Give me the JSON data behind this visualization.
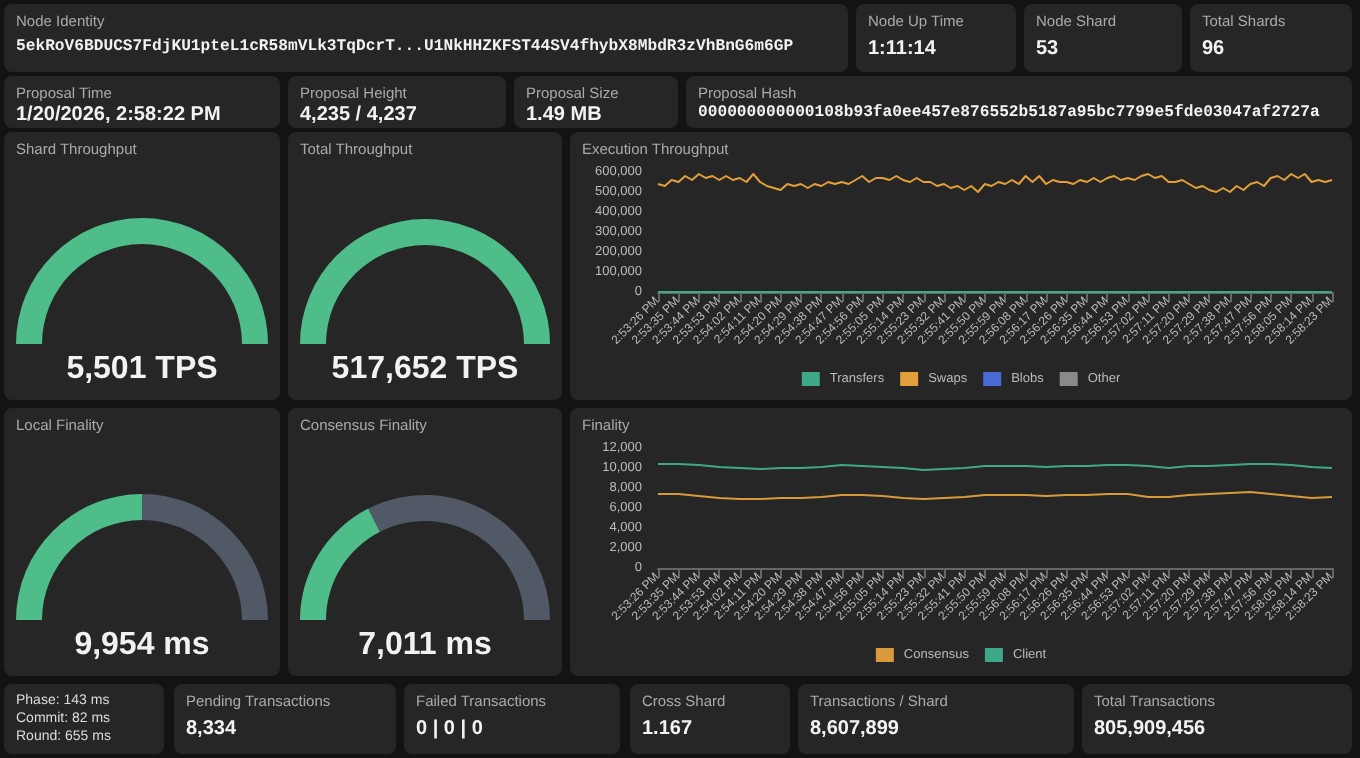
{
  "chart_data": [
    {
      "type": "other",
      "title": "Node Identity",
      "annotations": [
        "5ekRoV6BDUCS7FdjKU1pteL1cR58mVLk3TqDcrT...U1NkHHZKFST44SV4fhybX8MbdR3zVhBnG6m6GP"
      ]
    },
    {
      "type": "other",
      "title": "Node Up Time",
      "annotations": [
        "1:11:14"
      ]
    },
    {
      "type": "other",
      "title": "Node Shard",
      "annotations": [
        "53"
      ]
    },
    {
      "type": "other",
      "title": "Total Shards",
      "annotations": [
        "96"
      ]
    },
    {
      "type": "other",
      "title": "Proposal Time",
      "annotations": [
        "1/20/2026, 2:58:22 PM"
      ]
    },
    {
      "type": "other",
      "title": "Proposal Height",
      "annotations": [
        "4,235 / 4,237"
      ]
    },
    {
      "type": "other",
      "title": "Proposal Size",
      "annotations": [
        "1.49 MB"
      ]
    },
    {
      "type": "other",
      "title": "Proposal Hash",
      "annotations": [
        "000000000000108b93fa0ee457e876552b5187a95bc7799e5fde03047af2727a"
      ]
    },
    {
      "type": "pie",
      "title": "Shard Throughput",
      "categories": [
        null,
        null
      ],
      "values": [
        100,
        0
      ],
      "colors": [
        "#4fbd8a",
        "#515866"
      ],
      "annotations": [
        "5,501 TPS"
      ]
    },
    {
      "type": "pie",
      "title": "Total Throughput",
      "categories": [
        null,
        null
      ],
      "values": [
        100,
        0
      ],
      "colors": [
        "#4fbd8a",
        "#515866"
      ],
      "annotations": [
        "517,652 TPS"
      ]
    },
    {
      "type": "line",
      "title": "Execution Throughput",
      "legend": "bottom",
      "ylim": [
        0,
        600000
      ],
      "yticks": [
        {
          "value": 0,
          "label": "0"
        },
        {
          "value": 100000,
          "label": "100,000"
        },
        {
          "value": 200000,
          "label": "200,000"
        },
        {
          "value": 300000,
          "label": "300,000"
        },
        {
          "value": 400000,
          "label": "400,000"
        },
        {
          "value": 500000,
          "label": "500,000"
        },
        {
          "value": 600000,
          "label": "600,000"
        }
      ],
      "categories": [
        "2:53:26 PM",
        null,
        null,
        "2:53:35 PM",
        null,
        null,
        "2:53:44 PM",
        null,
        null,
        "2:53:53 PM",
        null,
        null,
        "2:54:02 PM",
        null,
        null,
        "2:54:11 PM",
        null,
        null,
        "2:54:20 PM",
        null,
        null,
        "2:54:29 PM",
        null,
        null,
        "2:54:38 PM",
        null,
        null,
        "2:54:47 PM",
        null,
        null,
        "2:54:56 PM",
        null,
        null,
        "2:55:05 PM",
        null,
        null,
        "2:55:14 PM",
        null,
        null,
        "2:55:23 PM",
        null,
        null,
        "2:55:32 PM",
        null,
        null,
        "2:55:41 PM",
        null,
        null,
        "2:55:50 PM",
        null,
        null,
        "2:55:59 PM",
        null,
        null,
        "2:56:08 PM",
        null,
        null,
        "2:56:17 PM",
        null,
        null,
        "2:56:26 PM",
        null,
        null,
        "2:56:35 PM",
        null,
        null,
        "2:56:44 PM",
        null,
        null,
        "2:56:53 PM",
        null,
        null,
        "2:57:02 PM",
        null,
        null,
        "2:57:11 PM",
        null,
        null,
        "2:57:20 PM",
        null,
        null,
        "2:57:29 PM",
        null,
        null,
        "2:57:38 PM",
        null,
        null,
        "2:57:47 PM",
        null,
        null,
        "2:57:56 PM",
        null,
        null,
        "2:58:05 PM",
        null,
        null,
        "2:58:14 PM",
        null,
        null,
        "2:58:23 PM"
      ],
      "series": [
        {
          "name": "Transfers",
          "color": "#3fa88a",
          "values": [
            0,
            0,
            0,
            0,
            0,
            0,
            0,
            0,
            0,
            0,
            0,
            0,
            0,
            0,
            0,
            0,
            0,
            0,
            0,
            0,
            0,
            0,
            0,
            0,
            0,
            0,
            0,
            0,
            0,
            0,
            0,
            0,
            0,
            0,
            0,
            0,
            0,
            0,
            0,
            0,
            0,
            0,
            0,
            0,
            0,
            0,
            0,
            0,
            0,
            0,
            0,
            0,
            0,
            0,
            0,
            0,
            0,
            0,
            0,
            0,
            0,
            0,
            0,
            0,
            0,
            0,
            0,
            0,
            0,
            0,
            0,
            0,
            0,
            0,
            0,
            0,
            0,
            0,
            0,
            0,
            0,
            0,
            0,
            0,
            0,
            0,
            0,
            0,
            0,
            0,
            0,
            0,
            0,
            0,
            0,
            0,
            0,
            0,
            0,
            0
          ]
        },
        {
          "name": "Swaps",
          "color": "#e3a03a",
          "values": [
            540000,
            530000,
            560000,
            550000,
            580000,
            560000,
            590000,
            570000,
            580000,
            560000,
            580000,
            560000,
            570000,
            550000,
            590000,
            550000,
            530000,
            520000,
            510000,
            540000,
            530000,
            540000,
            520000,
            540000,
            530000,
            550000,
            540000,
            550000,
            540000,
            560000,
            580000,
            550000,
            570000,
            570000,
            560000,
            580000,
            560000,
            550000,
            570000,
            550000,
            550000,
            530000,
            540000,
            520000,
            530000,
            510000,
            530000,
            500000,
            540000,
            530000,
            550000,
            540000,
            560000,
            540000,
            580000,
            550000,
            580000,
            540000,
            560000,
            550000,
            550000,
            540000,
            560000,
            550000,
            570000,
            550000,
            570000,
            580000,
            560000,
            570000,
            560000,
            580000,
            590000,
            570000,
            580000,
            550000,
            550000,
            560000,
            540000,
            520000,
            530000,
            510000,
            500000,
            520000,
            500000,
            530000,
            510000,
            540000,
            550000,
            530000,
            570000,
            580000,
            560000,
            590000,
            570000,
            590000,
            550000,
            560000,
            550000,
            560000
          ]
        },
        {
          "name": "Blobs",
          "color": "#4a6bd6",
          "values": [
            null,
            null,
            null,
            null,
            null,
            null,
            null,
            null,
            null,
            null,
            null,
            null,
            null,
            null,
            null,
            null,
            null,
            null,
            null,
            null,
            null,
            null,
            null,
            null,
            null,
            null,
            null,
            null,
            null,
            null,
            null,
            null,
            null,
            null,
            null,
            null,
            null,
            null,
            null,
            null,
            null,
            null,
            null,
            null,
            null,
            null,
            null,
            null,
            null,
            null,
            null,
            null,
            null,
            null,
            null,
            null,
            null,
            null,
            null,
            null,
            null,
            null,
            null,
            null,
            null,
            null,
            null,
            null,
            null,
            null,
            null,
            null,
            null,
            null,
            null,
            null,
            null,
            null,
            null,
            null,
            null,
            null,
            null,
            null,
            null,
            null,
            null,
            null,
            null,
            null,
            null,
            null,
            null,
            null,
            null,
            null,
            null,
            null,
            null,
            null
          ]
        },
        {
          "name": "Other",
          "color": "#8a8a8a",
          "values": [
            null,
            null,
            null,
            null,
            null,
            null,
            null,
            null,
            null,
            null,
            null,
            null,
            null,
            null,
            null,
            null,
            null,
            null,
            null,
            null,
            null,
            null,
            null,
            null,
            null,
            null,
            null,
            null,
            null,
            null,
            null,
            null,
            null,
            null,
            null,
            null,
            null,
            null,
            null,
            null,
            null,
            null,
            null,
            null,
            null,
            null,
            null,
            null,
            null,
            null,
            null,
            null,
            null,
            null,
            null,
            null,
            null,
            null,
            null,
            null,
            null,
            null,
            null,
            null,
            null,
            null,
            null,
            null,
            null,
            null,
            null,
            null,
            null,
            null,
            null,
            null,
            null,
            null,
            null,
            null,
            null,
            null,
            null,
            null,
            null,
            null,
            null,
            null,
            null,
            null,
            null,
            null,
            null,
            null,
            null,
            null,
            null,
            null,
            null,
            null
          ]
        }
      ]
    },
    {
      "type": "donut",
      "title": "Local Finality",
      "categories": [
        null,
        null
      ],
      "values": [
        50,
        50
      ],
      "colors": [
        "#4fbd8a",
        "#515866"
      ],
      "annotations": [
        "9,954 ms"
      ]
    },
    {
      "type": "donut",
      "title": "Consensus Finality",
      "categories": [
        null,
        null
      ],
      "values": [
        35,
        65
      ],
      "colors": [
        "#4fbd8a",
        "#515866"
      ],
      "annotations": [
        "7,011 ms"
      ]
    },
    {
      "type": "line",
      "title": "Finality",
      "legend": "bottom",
      "ylim": [
        0,
        12000
      ],
      "yticks": [
        {
          "value": 0,
          "label": "0"
        },
        {
          "value": 2000,
          "label": "2,000"
        },
        {
          "value": 4000,
          "label": "4,000"
        },
        {
          "value": 6000,
          "label": "6,000"
        },
        {
          "value": 8000,
          "label": "8,000"
        },
        {
          "value": 10000,
          "label": "10,000"
        },
        {
          "value": 12000,
          "label": "12,000"
        }
      ],
      "categories": [
        "2:53:26 PM",
        "2:53:35 PM",
        "2:53:44 PM",
        "2:53:53 PM",
        "2:54:02 PM",
        "2:54:11 PM",
        "2:54:20 PM",
        "2:54:29 PM",
        "2:54:38 PM",
        "2:54:47 PM",
        "2:54:56 PM",
        "2:55:05 PM",
        "2:55:14 PM",
        "2:55:23 PM",
        "2:55:32 PM",
        "2:55:41 PM",
        "2:55:50 PM",
        "2:55:59 PM",
        "2:56:08 PM",
        "2:56:17 PM",
        "2:56:26 PM",
        "2:56:35 PM",
        "2:56:44 PM",
        "2:56:53 PM",
        "2:57:02 PM",
        "2:57:11 PM",
        "2:57:20 PM",
        "2:57:29 PM",
        "2:57:38 PM",
        "2:57:47 PM",
        "2:57:56 PM",
        "2:58:05 PM",
        "2:58:14 PM",
        "2:58:23 PM"
      ],
      "series": [
        {
          "name": "Consensus",
          "color": "#d99a3b",
          "values": [
            7400,
            7400,
            7200,
            7000,
            6900,
            6900,
            7000,
            7000,
            7100,
            7300,
            7300,
            7200,
            7000,
            6900,
            7000,
            7100,
            7300,
            7300,
            7300,
            7200,
            7300,
            7300,
            7400,
            7400,
            7100,
            7100,
            7300,
            7400,
            7500,
            7600,
            7400,
            7200,
            7000,
            7100
          ]
        },
        {
          "name": "Client",
          "color": "#3fa88a",
          "values": [
            10400,
            10400,
            10300,
            10100,
            10000,
            9900,
            10000,
            10000,
            10100,
            10300,
            10200,
            10100,
            10000,
            9800,
            9900,
            10000,
            10200,
            10200,
            10200,
            10100,
            10200,
            10200,
            10300,
            10300,
            10200,
            10000,
            10200,
            10200,
            10300,
            10400,
            10400,
            10300,
            10100,
            10000
          ]
        }
      ]
    },
    {
      "type": "other",
      "annotations": [
        "Phase: 143 ms",
        "Commit: 82 ms",
        "Round: 655 ms"
      ]
    },
    {
      "type": "other",
      "title": "Pending Transactions",
      "annotations": [
        "8,334"
      ]
    },
    {
      "type": "other",
      "title": "Failed Transactions",
      "annotations": [
        "0 | 0 | 0"
      ]
    },
    {
      "type": "other",
      "title": "Cross Shard",
      "annotations": [
        "1.167"
      ]
    },
    {
      "type": "other",
      "title": "Transactions / Shard",
      "annotations": [
        "8,607,899"
      ]
    },
    {
      "type": "other",
      "title": "Total Transactions",
      "annotations": [
        "805,909,456"
      ]
    }
  ]
}
